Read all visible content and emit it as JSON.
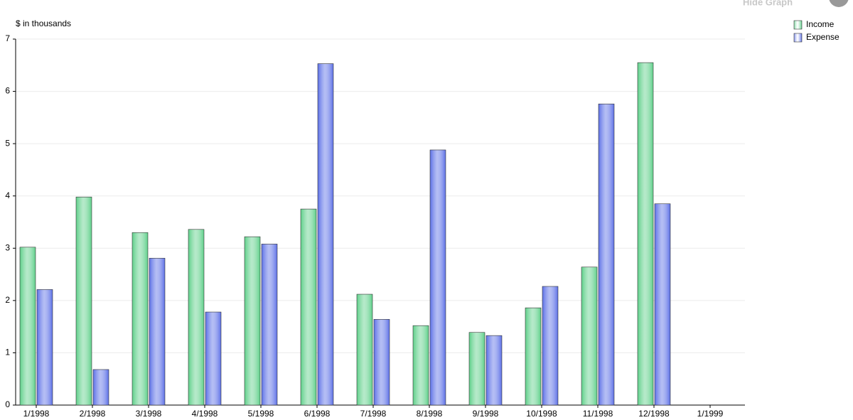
{
  "header": {
    "action": "Hide Graph"
  },
  "chart_data": {
    "type": "bar",
    "ylabel": "$ in thousands",
    "categories": [
      "1/1998",
      "2/1998",
      "3/1998",
      "4/1998",
      "5/1998",
      "6/1998",
      "7/1998",
      "8/1998",
      "9/1998",
      "10/1998",
      "11/1998",
      "12/1998",
      "1/1999"
    ],
    "series": [
      {
        "name": "Income",
        "color": "#5ccf88",
        "values": [
          3.02,
          3.98,
          3.3,
          3.36,
          3.22,
          3.75,
          2.12,
          1.52,
          1.39,
          1.86,
          2.64,
          6.55,
          null
        ]
      },
      {
        "name": "Expense",
        "color": "#5a6ee6",
        "values": [
          2.21,
          0.68,
          2.81,
          1.78,
          3.08,
          6.53,
          1.64,
          4.88,
          1.33,
          2.27,
          5.76,
          3.85,
          null
        ]
      }
    ],
    "ylim": [
      0,
      7
    ],
    "yticks": [
      0,
      1,
      2,
      3,
      4,
      5,
      6,
      7
    ],
    "grid": true,
    "legend": "top-right"
  }
}
